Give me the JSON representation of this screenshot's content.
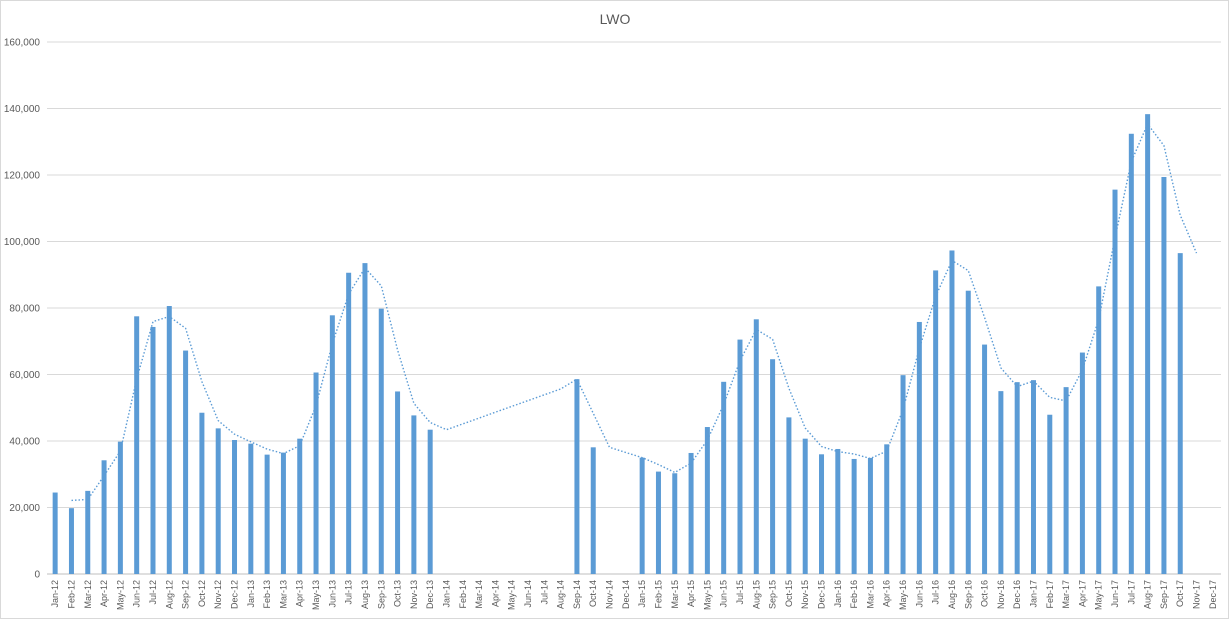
{
  "chart_data": {
    "type": "bar",
    "title": "LWO",
    "xlabel": "",
    "ylabel": "",
    "ylim": [
      0,
      160000
    ],
    "yticks": [
      "0",
      "20,000",
      "40,000",
      "60,000",
      "80,000",
      "100,000",
      "120,000",
      "140,000",
      "160,000"
    ],
    "grid": true,
    "legend": "none",
    "bar_color": "#5b9bd5",
    "trend_color": "#5b9bd5",
    "trend_style": "dotted moving average (2-period)",
    "categories": [
      "Jan-12",
      "Feb-12",
      "Mar-12",
      "Apr-12",
      "May-12",
      "Jun-12",
      "Jul-12",
      "Aug-12",
      "Sep-12",
      "Oct-12",
      "Nov-12",
      "Dec-12",
      "Jan-13",
      "Feb-13",
      "Mar-13",
      "Apr-13",
      "May-13",
      "Jun-13",
      "Jul-13",
      "Aug-13",
      "Sep-13",
      "Oct-13",
      "Nov-13",
      "Dec-13",
      "Jan-14",
      "Feb-14",
      "Mar-14",
      "Apr-14",
      "May-14",
      "Jun-14",
      "Jul-14",
      "Aug-14",
      "Sep-14",
      "Oct-14",
      "Nov-14",
      "Dec-14",
      "Jan-15",
      "Feb-15",
      "Mar-15",
      "Apr-15",
      "May-15",
      "Jun-15",
      "Jul-15",
      "Aug-15",
      "Sep-15",
      "Oct-15",
      "Nov-15",
      "Dec-15",
      "Jan-16",
      "Feb-16",
      "Mar-16",
      "Apr-16",
      "May-16",
      "Jun-16",
      "Jul-16",
      "Aug-16",
      "Sep-16",
      "Oct-16",
      "Nov-16",
      "Dec-16",
      "Jan-17",
      "Feb-17",
      "Mar-17",
      "Apr-17",
      "May-17",
      "Jun-17",
      "Jul-17",
      "Aug-17",
      "Sep-17",
      "Oct-17",
      "Nov-17",
      "Dec-17"
    ],
    "values": [
      24500,
      19800,
      25000,
      34200,
      39800,
      77500,
      74300,
      80600,
      67200,
      48500,
      43800,
      40300,
      39200,
      35900,
      36500,
      40700,
      60600,
      77800,
      90600,
      93500,
      79800,
      54900,
      47700,
      43400,
      null,
      null,
      null,
      null,
      null,
      null,
      null,
      null,
      58600,
      38100,
      null,
      null,
      35000,
      30800,
      30300,
      36400,
      44200,
      57800,
      70500,
      76600,
      64600,
      47100,
      40700,
      36000,
      37600,
      34600,
      34900,
      39000,
      59800,
      75800,
      91300,
      97300,
      85200,
      69000,
      55000,
      57700,
      58300,
      47900,
      56200,
      66600,
      86500,
      115600,
      132400,
      138300,
      119400,
      96500,
      null,
      null
    ],
    "trend": [
      null,
      22150,
      22400,
      29600,
      37000,
      58650,
      75900,
      77450,
      73900,
      57850,
      46150,
      42050,
      39750,
      37550,
      36200,
      38600,
      50650,
      69200,
      84200,
      92050,
      86650,
      67350,
      51300,
      45550,
      43400,
      45150,
      46900,
      48650,
      50400,
      52150,
      53900,
      55650,
      58600,
      48350,
      38100,
      36550,
      35000,
      32900,
      30550,
      33350,
      40300,
      51000,
      64150,
      73550,
      70600,
      55850,
      43900,
      38350,
      36800,
      36100,
      34750,
      36950,
      49400,
      67800,
      83550,
      94300,
      91250,
      77100,
      62000,
      56350,
      58000,
      53100,
      52050,
      61400,
      76550,
      101050,
      124000,
      135350,
      128850,
      107950,
      96500,
      null
    ]
  }
}
